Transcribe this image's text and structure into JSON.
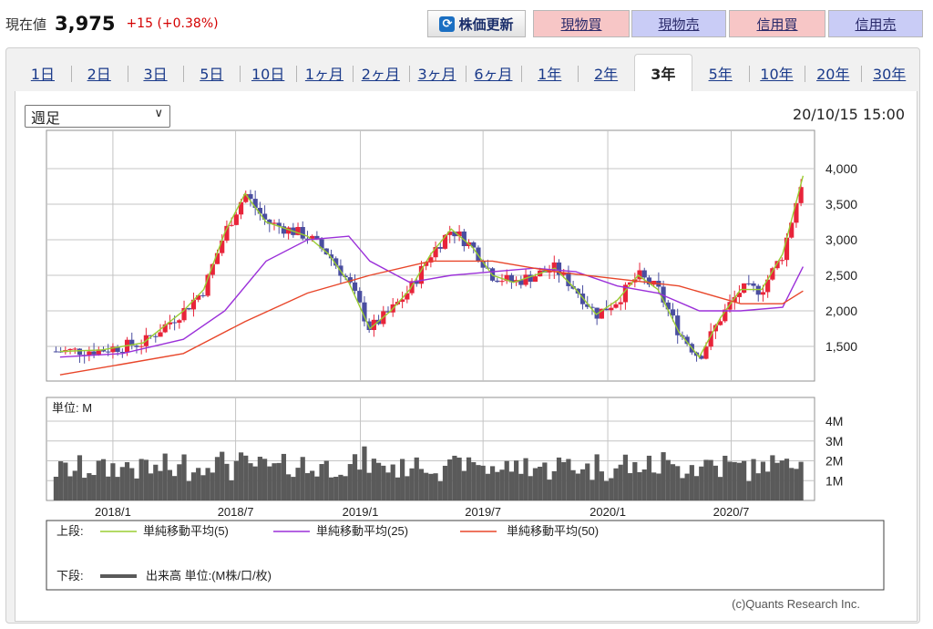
{
  "header": {
    "price_label": "現在値",
    "price_value": "3,975",
    "change": "+15 (+0.38%)"
  },
  "toolbar": {
    "refresh_label": "株価更新",
    "spot_buy": "現物買",
    "spot_sell": "現物売",
    "margin_buy": "信用買",
    "margin_sell": "信用売"
  },
  "tabs": [
    "1日",
    "2日",
    "3日",
    "5日",
    "10日",
    "1ヶ月",
    "2ヶ月",
    "3ヶ月",
    "6ヶ月",
    "1年",
    "2年",
    "3年",
    "5年",
    "10年",
    "20年",
    "30年"
  ],
  "active_tab": "3年",
  "interval_select": "週足",
  "timestamp": "20/10/15 15:00",
  "colors": {
    "up": "#e8243a",
    "down": "#4a4ea0",
    "ma5": "#9acd32",
    "ma25": "#9b30d9",
    "ma50": "#e8462a",
    "volume": "#5a5a5a"
  },
  "copyright": "(c)Quants Research Inc.",
  "chart_data": [
    {
      "type": "candlestick",
      "title": "",
      "x_tick_labels": [
        "2018/1",
        "2018/7",
        "2019/1",
        "2019/7",
        "2020/1",
        "2020/7"
      ],
      "y_tick_labels": [
        "4,000",
        "3,500",
        "3,000",
        "2,500",
        "2,000",
        "1,500"
      ],
      "ylim": [
        1100,
        4500
      ],
      "grid": true,
      "series": [
        {
          "name": "単純移動平均(5)",
          "points": [
            [
              "2017-10",
              1430
            ],
            [
              "2017-12",
              1450
            ],
            [
              "2018-02",
              1550
            ],
            [
              "2018-04",
              2000
            ],
            [
              "2018-05",
              2300
            ],
            [
              "2018-06",
              3100
            ],
            [
              "2018-07",
              3650
            ],
            [
              "2018-08",
              3250
            ],
            [
              "2018-09",
              3150
            ],
            [
              "2018-10",
              3050
            ],
            [
              "2018-11",
              2800
            ],
            [
              "2018-12",
              2400
            ],
            [
              "2019-01",
              1750
            ],
            [
              "2019-02",
              2000
            ],
            [
              "2019-03",
              2300
            ],
            [
              "2019-04",
              2800
            ],
            [
              "2019-05",
              3150
            ],
            [
              "2019-06",
              2900
            ],
            [
              "2019-07",
              2500
            ],
            [
              "2019-08",
              2400
            ],
            [
              "2019-09",
              2500
            ],
            [
              "2019-10",
              2600
            ],
            [
              "2019-11",
              2300
            ],
            [
              "2019-12",
              1950
            ],
            [
              "2020-01",
              2150
            ],
            [
              "2020-02",
              2500
            ],
            [
              "2020-03",
              2300
            ],
            [
              "2020-04",
              1700
            ],
            [
              "2020-05",
              1350
            ],
            [
              "2020-06",
              1900
            ],
            [
              "2020-07",
              2300
            ],
            [
              "2020-08",
              2300
            ],
            [
              "2020-09",
              2800
            ],
            [
              "2020-10",
              3900
            ]
          ]
        },
        {
          "name": "単純移動平均(25)",
          "points": [
            [
              "2017-10",
              1350
            ],
            [
              "2018-01",
              1400
            ],
            [
              "2018-04",
              1600
            ],
            [
              "2018-06",
              2000
            ],
            [
              "2018-08",
              2700
            ],
            [
              "2018-10",
              3000
            ],
            [
              "2018-12",
              3050
            ],
            [
              "2019-01",
              2700
            ],
            [
              "2019-03",
              2400
            ],
            [
              "2019-05",
              2500
            ],
            [
              "2019-07",
              2550
            ],
            [
              "2019-09",
              2600
            ],
            [
              "2019-11",
              2550
            ],
            [
              "2020-01",
              2350
            ],
            [
              "2020-03",
              2250
            ],
            [
              "2020-05",
              2000
            ],
            [
              "2020-07",
              2000
            ],
            [
              "2020-09",
              2050
            ],
            [
              "2020-10",
              2620
            ]
          ]
        },
        {
          "name": "単純移動平均(50)",
          "points": [
            [
              "2017-10",
              1100
            ],
            [
              "2018-01",
              1250
            ],
            [
              "2018-04",
              1400
            ],
            [
              "2018-07",
              1850
            ],
            [
              "2018-10",
              2250
            ],
            [
              "2019-01",
              2500
            ],
            [
              "2019-04",
              2700
            ],
            [
              "2019-07",
              2700
            ],
            [
              "2019-10",
              2550
            ],
            [
              "2020-01",
              2450
            ],
            [
              "2020-04",
              2350
            ],
            [
              "2020-07",
              2100
            ],
            [
              "2020-09",
              2100
            ],
            [
              "2020-10",
              2280
            ]
          ]
        }
      ],
      "annotations": [
        "上段:",
        "下段:"
      ],
      "volume_legend": "出来高 単位:(M株/口/枚)"
    },
    {
      "type": "bar",
      "title": "",
      "unit_label": "単位: M",
      "y_tick_labels": [
        "4M",
        "3M",
        "2M",
        "1M"
      ],
      "ylim": [
        0,
        5
      ],
      "grid": true
    }
  ]
}
